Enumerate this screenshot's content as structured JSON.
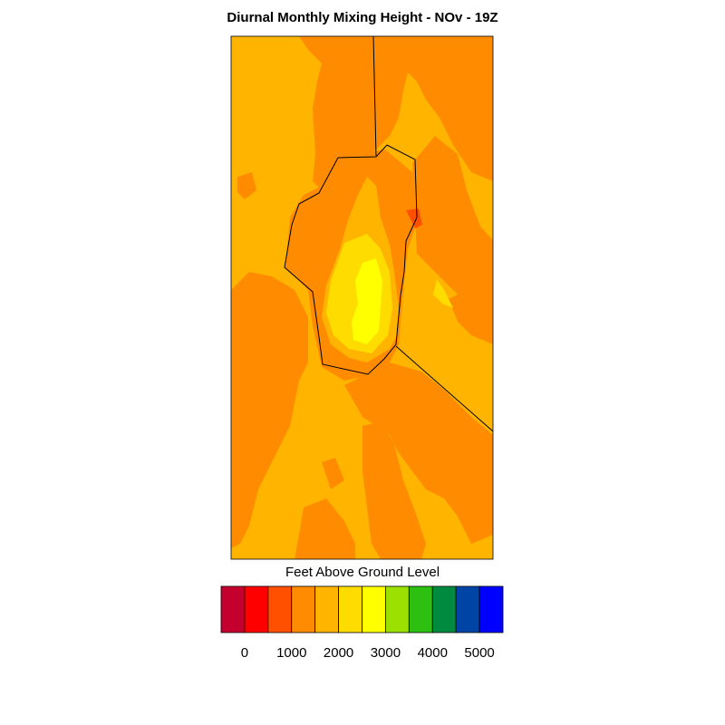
{
  "title": "Diurnal Monthly Mixing Height - NOv - 19Z",
  "colorbar": {
    "title": "Feet Above Ground Level",
    "colors": [
      "#c4002f",
      "#ff0000",
      "#ff5000",
      "#ff8c00",
      "#ffb400",
      "#ffdc00",
      "#ffff00",
      "#9be000",
      "#2dc010",
      "#008a40",
      "#0045a5",
      "#0000ff"
    ],
    "tick_labels": [
      "0",
      "1000",
      "2000",
      "3000",
      "4000",
      "5000"
    ],
    "tick_values": [
      0,
      1000,
      2000,
      3000,
      4000,
      5000
    ],
    "level_step": 500
  },
  "map": {
    "fill_colors": {
      "base": "#ffb400",
      "mid": "#ff8c00",
      "high": "#ffdc00",
      "peak": "#ffff00",
      "hot": "#ff5000"
    },
    "border_color": "#000000"
  }
}
